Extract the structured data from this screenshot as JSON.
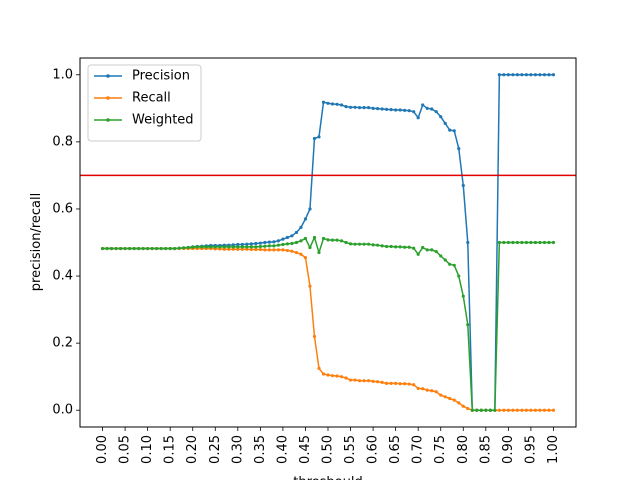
{
  "chart_data": {
    "type": "line",
    "title": "",
    "xlabel": "threshould",
    "ylabel": "precision/recall",
    "xlim": [
      -0.05,
      1.05
    ],
    "ylim": [
      -0.05,
      1.05
    ],
    "x_ticks": [
      "0.00",
      "0.05",
      "0.10",
      "0.15",
      "0.20",
      "0.25",
      "0.30",
      "0.35",
      "0.40",
      "0.45",
      "0.50",
      "0.55",
      "0.60",
      "0.65",
      "0.70",
      "0.75",
      "0.80",
      "0.85",
      "0.90",
      "0.95",
      "1.00"
    ],
    "y_ticks": [
      "0.0",
      "0.2",
      "0.4",
      "0.6",
      "0.8",
      "1.0"
    ],
    "grid": false,
    "legend_position": "top-left",
    "reference_line": {
      "y": 0.7,
      "color": "#e00000"
    },
    "x": [
      0.0,
      0.01,
      0.02,
      0.03,
      0.04,
      0.05,
      0.06,
      0.07,
      0.08,
      0.09,
      0.1,
      0.11,
      0.12,
      0.13,
      0.14,
      0.15,
      0.16,
      0.17,
      0.18,
      0.19,
      0.2,
      0.21,
      0.22,
      0.23,
      0.24,
      0.25,
      0.26,
      0.27,
      0.28,
      0.29,
      0.3,
      0.31,
      0.32,
      0.33,
      0.34,
      0.35,
      0.36,
      0.37,
      0.38,
      0.39,
      0.4,
      0.41,
      0.42,
      0.43,
      0.44,
      0.45,
      0.46,
      0.47,
      0.48,
      0.49,
      0.5,
      0.51,
      0.52,
      0.53,
      0.54,
      0.55,
      0.56,
      0.57,
      0.58,
      0.59,
      0.6,
      0.61,
      0.62,
      0.63,
      0.64,
      0.65,
      0.66,
      0.67,
      0.68,
      0.69,
      0.7,
      0.71,
      0.72,
      0.73,
      0.74,
      0.75,
      0.76,
      0.77,
      0.78,
      0.79,
      0.8,
      0.81,
      0.82,
      0.83,
      0.84,
      0.85,
      0.86,
      0.87,
      0.88,
      0.89,
      0.9,
      0.91,
      0.92,
      0.93,
      0.94,
      0.95,
      0.96,
      0.97,
      0.98,
      0.99,
      1.0
    ],
    "series": [
      {
        "name": "Precision",
        "color": "#1f77b4",
        "values": [
          0.482,
          0.482,
          0.482,
          0.482,
          0.482,
          0.482,
          0.482,
          0.482,
          0.482,
          0.482,
          0.482,
          0.482,
          0.482,
          0.482,
          0.482,
          0.482,
          0.482,
          0.483,
          0.484,
          0.485,
          0.487,
          0.488,
          0.489,
          0.49,
          0.491,
          0.491,
          0.491,
          0.492,
          0.492,
          0.493,
          0.494,
          0.494,
          0.495,
          0.496,
          0.497,
          0.498,
          0.5,
          0.501,
          0.502,
          0.505,
          0.51,
          0.515,
          0.52,
          0.53,
          0.545,
          0.57,
          0.6,
          0.81,
          0.815,
          0.918,
          0.915,
          0.913,
          0.912,
          0.91,
          0.905,
          0.903,
          0.903,
          0.902,
          0.902,
          0.902,
          0.9,
          0.899,
          0.898,
          0.897,
          0.896,
          0.895,
          0.895,
          0.894,
          0.893,
          0.89,
          0.872,
          0.91,
          0.9,
          0.898,
          0.89,
          0.875,
          0.855,
          0.835,
          0.833,
          0.78,
          0.67,
          0.5,
          0.0,
          0.0,
          0.0,
          0.0,
          0.0,
          0.0,
          1.0,
          1.0,
          1.0,
          1.0,
          1.0,
          1.0,
          1.0,
          1.0,
          1.0,
          1.0,
          1.0,
          1.0,
          1.0
        ]
      },
      {
        "name": "Recall",
        "color": "#ff7f0e",
        "values": [
          0.482,
          0.482,
          0.482,
          0.482,
          0.482,
          0.482,
          0.482,
          0.482,
          0.482,
          0.482,
          0.482,
          0.482,
          0.482,
          0.482,
          0.482,
          0.482,
          0.482,
          0.482,
          0.482,
          0.482,
          0.482,
          0.482,
          0.482,
          0.482,
          0.482,
          0.481,
          0.481,
          0.48,
          0.48,
          0.48,
          0.48,
          0.48,
          0.48,
          0.479,
          0.479,
          0.479,
          0.478,
          0.478,
          0.478,
          0.478,
          0.478,
          0.476,
          0.474,
          0.47,
          0.465,
          0.455,
          0.37,
          0.22,
          0.125,
          0.108,
          0.105,
          0.103,
          0.102,
          0.1,
          0.096,
          0.09,
          0.09,
          0.088,
          0.088,
          0.088,
          0.086,
          0.085,
          0.083,
          0.08,
          0.08,
          0.08,
          0.079,
          0.079,
          0.078,
          0.076,
          0.065,
          0.064,
          0.06,
          0.058,
          0.055,
          0.045,
          0.04,
          0.035,
          0.03,
          0.022,
          0.012,
          0.005,
          0.0,
          0.0,
          0.0,
          0.0,
          0.0,
          0.0,
          0.0,
          0.0,
          0.0,
          0.0,
          0.0,
          0.0,
          0.0,
          0.0,
          0.0,
          0.0,
          0.0,
          0.0,
          0.0
        ]
      },
      {
        "name": "Weighted",
        "color": "#2ca02c",
        "values": [
          0.482,
          0.482,
          0.482,
          0.482,
          0.482,
          0.482,
          0.482,
          0.482,
          0.482,
          0.482,
          0.482,
          0.482,
          0.482,
          0.482,
          0.482,
          0.482,
          0.482,
          0.483,
          0.484,
          0.485,
          0.486,
          0.487,
          0.487,
          0.487,
          0.487,
          0.487,
          0.487,
          0.487,
          0.487,
          0.487,
          0.487,
          0.487,
          0.487,
          0.487,
          0.487,
          0.488,
          0.489,
          0.49,
          0.49,
          0.492,
          0.494,
          0.496,
          0.497,
          0.5,
          0.505,
          0.512,
          0.485,
          0.515,
          0.47,
          0.512,
          0.508,
          0.507,
          0.507,
          0.505,
          0.5,
          0.496,
          0.495,
          0.495,
          0.495,
          0.495,
          0.493,
          0.492,
          0.49,
          0.488,
          0.488,
          0.487,
          0.487,
          0.486,
          0.486,
          0.483,
          0.465,
          0.485,
          0.478,
          0.478,
          0.473,
          0.46,
          0.448,
          0.435,
          0.432,
          0.4,
          0.34,
          0.255,
          0.0,
          0.0,
          0.0,
          0.0,
          0.0,
          0.0,
          0.5,
          0.5,
          0.5,
          0.5,
          0.5,
          0.5,
          0.5,
          0.5,
          0.5,
          0.5,
          0.5,
          0.5,
          0.5
        ]
      }
    ]
  }
}
